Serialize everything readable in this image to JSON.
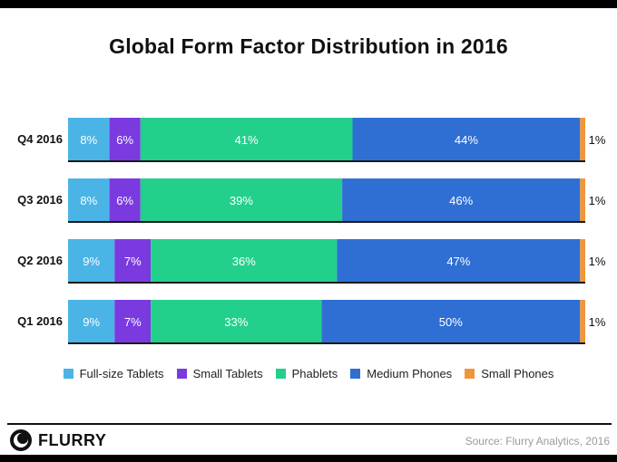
{
  "chart_data": {
    "type": "bar",
    "orientation": "horizontal",
    "stacked": true,
    "title": "Global Form Factor Distribution in 2016",
    "categories": [
      "Q4 2016",
      "Q3 2016",
      "Q2 2016",
      "Q1 2016"
    ],
    "series": [
      {
        "name": "Full-size Tablets",
        "color": "#4ab4e6",
        "values": [
          8,
          8,
          9,
          9
        ]
      },
      {
        "name": "Small Tablets",
        "color": "#7a3ae0",
        "values": [
          6,
          6,
          7,
          7
        ]
      },
      {
        "name": "Phablets",
        "color": "#22d08c",
        "values": [
          41,
          39,
          36,
          33
        ]
      },
      {
        "name": "Medium Phones",
        "color": "#2f6fd4",
        "values": [
          44,
          46,
          47,
          50
        ]
      },
      {
        "name": "Small Phones",
        "color": "#f0963a",
        "values": [
          1,
          1,
          1,
          1
        ]
      }
    ],
    "labels": [
      [
        "8%",
        "6%",
        "41%",
        "44%",
        "1%"
      ],
      [
        "8%",
        "6%",
        "39%",
        "46%",
        "1%"
      ],
      [
        "9%",
        "7%",
        "36%",
        "47%",
        "1%"
      ],
      [
        "9%",
        "7%",
        "33%",
        "50%",
        "1%"
      ]
    ],
    "xlim": [
      0,
      100
    ],
    "legend_position": "bottom"
  },
  "footer": {
    "brand": "FLURRY",
    "source": "Source: Flurry Analytics, 2016"
  }
}
